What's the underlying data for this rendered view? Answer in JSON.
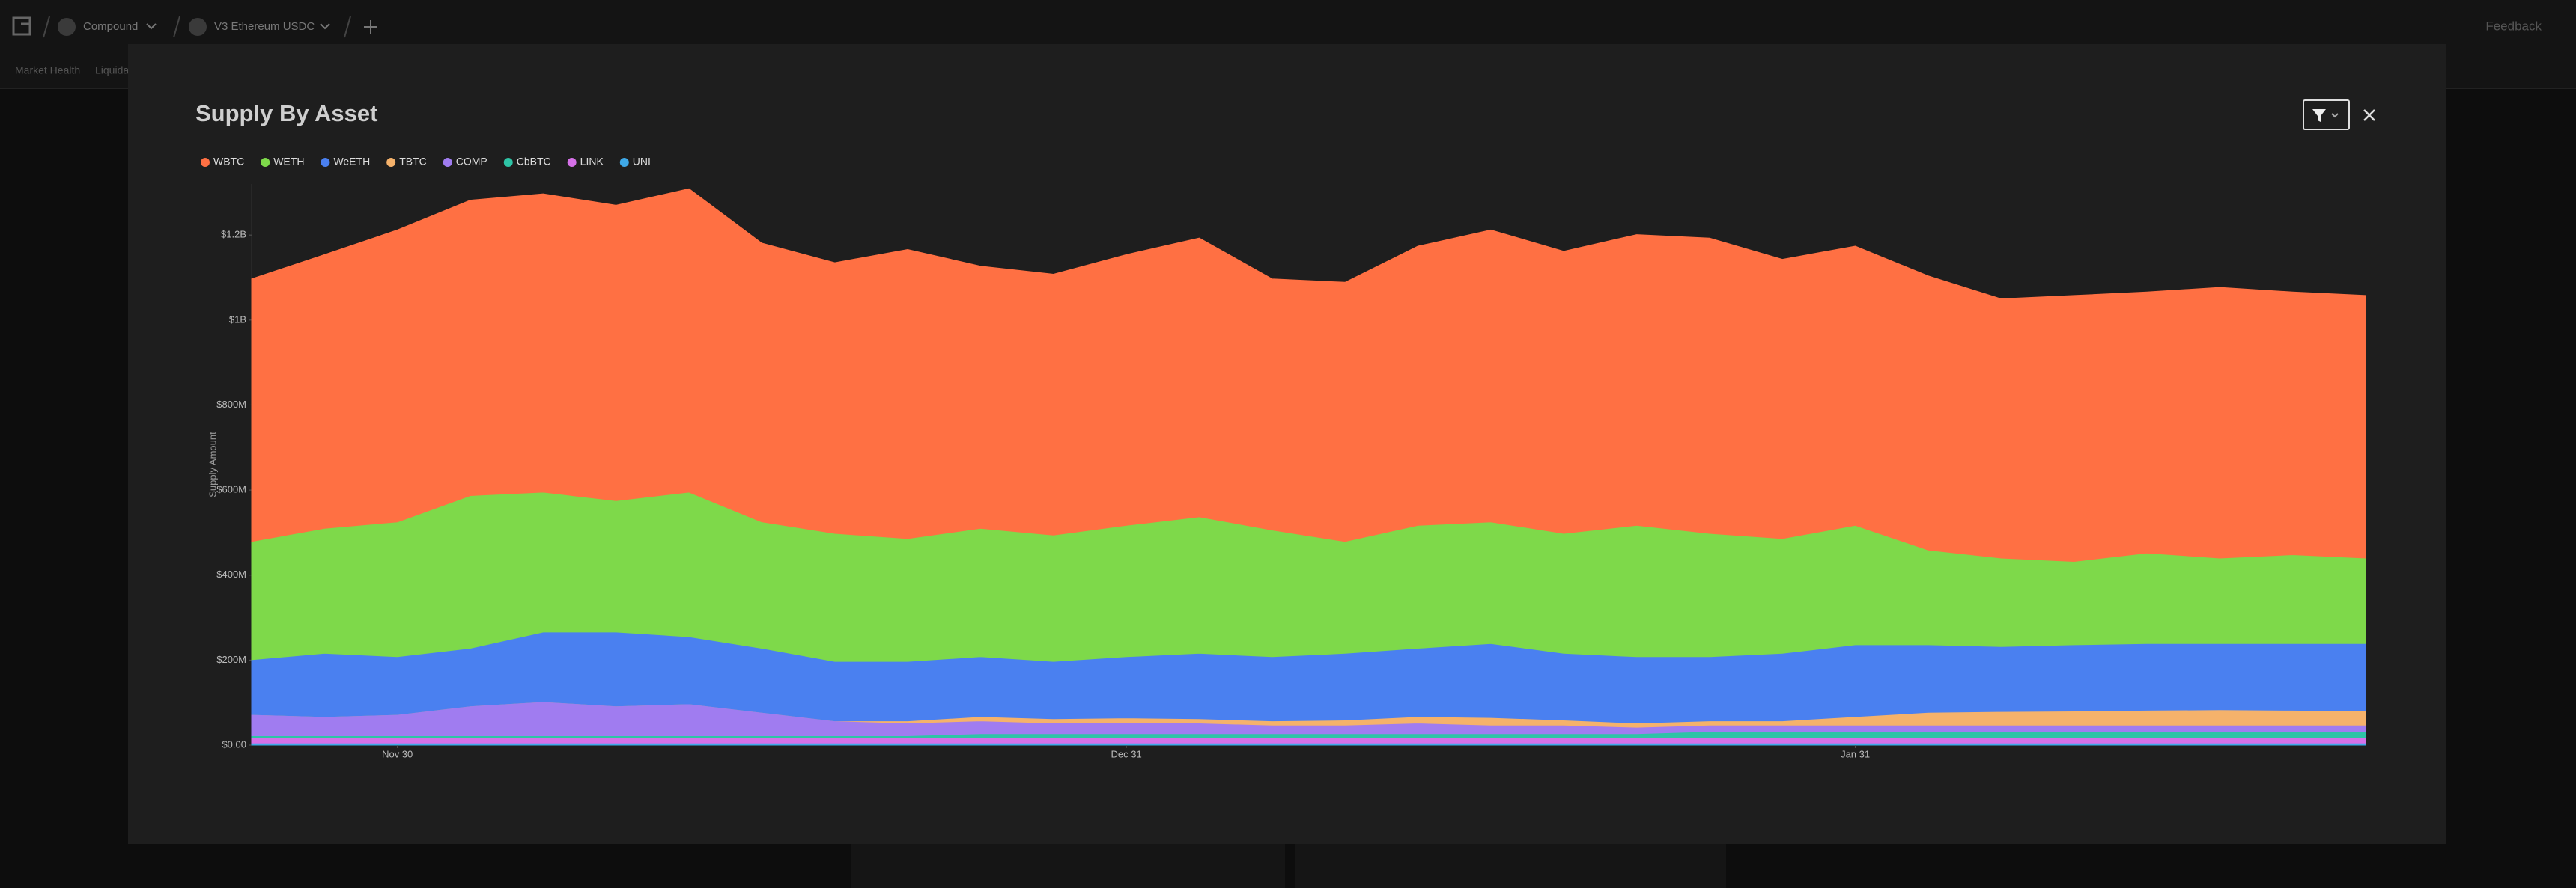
{
  "header": {
    "protocol": "Compound",
    "market": "V3 Ethereum USDC",
    "feedback": "Feedback",
    "tabs": [
      "Market Health",
      "Liquidations"
    ]
  },
  "chart_data": {
    "type": "stacked-area",
    "title": "Supply By Asset",
    "y_label": "Supply Amount",
    "categories": [
      null,
      null,
      "Nov 30",
      null,
      null,
      null,
      null,
      null,
      null,
      null,
      null,
      null,
      "Dec 31",
      null,
      null,
      null,
      null,
      null,
      null,
      null,
      null,
      null,
      "Jan 31",
      null,
      null,
      null,
      null,
      null,
      null,
      null
    ],
    "ylim": [
      0,
      1320000000
    ],
    "yticks": [
      {
        "value": 0,
        "label": "$0.00"
      },
      {
        "value": 200000000,
        "label": "$200M"
      },
      {
        "value": 400000000,
        "label": "$400M"
      },
      {
        "value": 600000000,
        "label": "$600M"
      },
      {
        "value": 800000000,
        "label": "$800M"
      },
      {
        "value": 1000000000,
        "label": "$1B"
      },
      {
        "value": 1200000000,
        "label": "$1.2B"
      }
    ],
    "series": [
      {
        "name": "WBTC",
        "color": "#ff7043",
        "values": [
          618000000,
          644000000,
          687000000,
          695000000,
          702000000,
          695000000,
          714000000,
          656000000,
          637000000,
          680000000,
          617000000,
          614000000,
          637000000,
          656000000,
          591000000,
          610000000,
          657000000,
          687000000,
          664000000,
          684000000,
          695000000,
          657000000,
          657000000,
          645000000,
          610000000,
          626000000,
          614000000,
          637000000,
          618000000,
          618000000
        ]
      },
      {
        "name": "WETH",
        "color": "#7ed94a",
        "values": [
          278000000,
          294000000,
          317000000,
          359000000,
          329000000,
          309000000,
          340000000,
          297000000,
          301000000,
          289000000,
          302000000,
          297000000,
          309000000,
          321000000,
          298000000,
          263000000,
          289000000,
          286000000,
          282000000,
          309000000,
          290000000,
          270000000,
          281000000,
          223000000,
          208000000,
          196000000,
          213000000,
          201000000,
          209000000,
          201000000
        ]
      },
      {
        "name": "WeETH",
        "color": "#4a80f0",
        "values": [
          129000000,
          149000000,
          136000000,
          136000000,
          164000000,
          174000000,
          158000000,
          151000000,
          140000000,
          140000000,
          141000000,
          135000000,
          144000000,
          154000000,
          151000000,
          157000000,
          161000000,
          174000000,
          157000000,
          156000000,
          151000000,
          159000000,
          169000000,
          159000000,
          153000000,
          156000000,
          157000000,
          156000000,
          157000000,
          159000000
        ]
      },
      {
        "name": "TBTC",
        "color": "#f5b26b",
        "values": [
          0,
          0,
          0,
          0,
          0,
          0,
          0,
          0,
          0,
          5000000,
          10000000,
          10000000,
          12000000,
          10000000,
          10000000,
          12000000,
          15000000,
          18000000,
          12000000,
          10000000,
          10000000,
          10000000,
          20000000,
          30000000,
          32000000,
          33000000,
          35000000,
          36000000,
          35000000,
          33000000
        ]
      },
      {
        "name": "COMP",
        "color": "#a07cf0",
        "values": [
          50000000,
          45000000,
          50000000,
          70000000,
          80000000,
          70000000,
          75000000,
          55000000,
          35000000,
          30000000,
          30000000,
          25000000,
          25000000,
          25000000,
          20000000,
          20000000,
          25000000,
          20000000,
          20000000,
          15000000,
          15000000,
          15000000,
          15000000,
          15000000,
          15000000,
          15000000,
          15000000,
          15000000,
          15000000,
          15000000
        ]
      },
      {
        "name": "CbBTC",
        "color": "#2ec4a6",
        "values": [
          5000000,
          5000000,
          5000000,
          5000000,
          5000000,
          5000000,
          5000000,
          5000000,
          5000000,
          5000000,
          10000000,
          10000000,
          10000000,
          10000000,
          10000000,
          10000000,
          10000000,
          10000000,
          10000000,
          10000000,
          15000000,
          15000000,
          15000000,
          15000000,
          15000000,
          15000000,
          15000000,
          15000000,
          15000000,
          15000000
        ]
      },
      {
        "name": "LINK",
        "color": "#d671e8",
        "values": [
          12000000,
          12000000,
          12000000,
          12000000,
          12000000,
          12000000,
          12000000,
          12000000,
          12000000,
          12000000,
          12000000,
          12000000,
          12000000,
          12000000,
          12000000,
          12000000,
          12000000,
          12000000,
          12000000,
          12000000,
          12000000,
          12000000,
          12000000,
          12000000,
          12000000,
          12000000,
          12000000,
          12000000,
          12000000,
          12000000
        ]
      },
      {
        "name": "UNI",
        "color": "#3fa9e8",
        "values": [
          5000000,
          5000000,
          5000000,
          5000000,
          5000000,
          5000000,
          5000000,
          5000000,
          5000000,
          5000000,
          5000000,
          5000000,
          5000000,
          5000000,
          5000000,
          5000000,
          5000000,
          5000000,
          5000000,
          5000000,
          5000000,
          5000000,
          5000000,
          5000000,
          5000000,
          5000000,
          5000000,
          5000000,
          5000000,
          5000000
        ]
      }
    ]
  }
}
